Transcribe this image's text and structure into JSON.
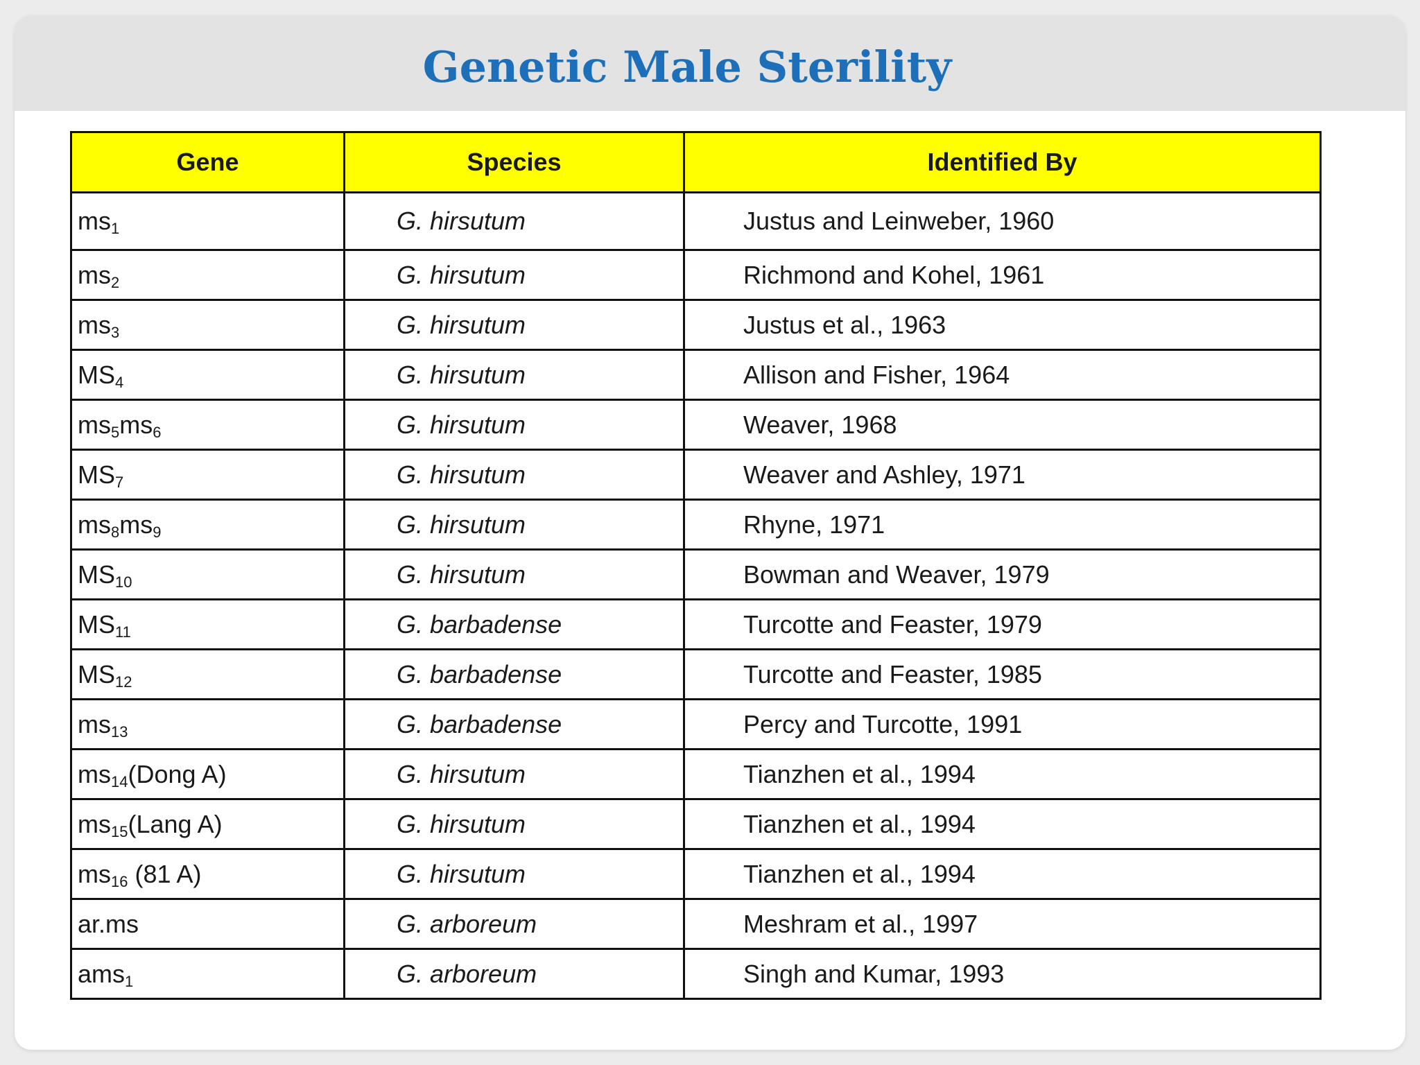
{
  "title": "Genetic Male Sterility",
  "table": {
    "headers": [
      "Gene",
      "Species",
      "Identified By"
    ],
    "rows": [
      {
        "gene": [
          {
            "t": "ms"
          },
          {
            "s": "1"
          }
        ],
        "species": "G. hirsutum",
        "identified_by": "Justus and Leinweber, 1960"
      },
      {
        "gene": [
          {
            "t": "ms"
          },
          {
            "s": "2"
          }
        ],
        "species": "G. hirsutum",
        "identified_by": "Richmond and Kohel, 1961"
      },
      {
        "gene": [
          {
            "t": "ms"
          },
          {
            "s": "3"
          }
        ],
        "species": "G. hirsutum",
        "identified_by": "Justus et al., 1963"
      },
      {
        "gene": [
          {
            "t": "MS"
          },
          {
            "s": "4"
          }
        ],
        "species": "G. hirsutum",
        "identified_by": "Allison and Fisher, 1964"
      },
      {
        "gene": [
          {
            "t": "ms"
          },
          {
            "s": "5"
          },
          {
            "t": "ms"
          },
          {
            "s": "6"
          }
        ],
        "species": "G. hirsutum",
        "identified_by": "Weaver, 1968"
      },
      {
        "gene": [
          {
            "t": "MS"
          },
          {
            "s": "7"
          }
        ],
        "species": "G. hirsutum",
        "identified_by": "Weaver and Ashley, 1971"
      },
      {
        "gene": [
          {
            "t": "ms"
          },
          {
            "s": "8"
          },
          {
            "t": "ms"
          },
          {
            "s": "9"
          }
        ],
        "species": "G. hirsutum",
        "identified_by": "Rhyne, 1971"
      },
      {
        "gene": [
          {
            "t": "MS"
          },
          {
            "s": "10"
          }
        ],
        "species": "G. hirsutum",
        "identified_by": "Bowman and Weaver, 1979"
      },
      {
        "gene": [
          {
            "t": "MS"
          },
          {
            "s": "11"
          }
        ],
        "species": "G. barbadense",
        "identified_by": "Turcotte and Feaster, 1979"
      },
      {
        "gene": [
          {
            "t": "MS"
          },
          {
            "s": "12"
          }
        ],
        "species": "G. barbadense",
        "identified_by": "Turcotte and Feaster, 1985"
      },
      {
        "gene": [
          {
            "t": "ms"
          },
          {
            "s": "13"
          }
        ],
        "species": "G. barbadense",
        "identified_by": "Percy and Turcotte, 1991"
      },
      {
        "gene": [
          {
            "t": "ms"
          },
          {
            "s": "14"
          },
          {
            "t": "(Dong A)"
          }
        ],
        "species": "G. hirsutum",
        "identified_by": "Tianzhen et al., 1994"
      },
      {
        "gene": [
          {
            "t": "ms"
          },
          {
            "s": "15"
          },
          {
            "t": "(Lang A)"
          }
        ],
        "species": "G. hirsutum",
        "identified_by": "Tianzhen et al., 1994"
      },
      {
        "gene": [
          {
            "t": "ms"
          },
          {
            "s": "16"
          },
          {
            "t": " (81 A)"
          }
        ],
        "species": "G. hirsutum",
        "identified_by": "Tianzhen et al., 1994"
      },
      {
        "gene": [
          {
            "t": "ar.ms"
          }
        ],
        "species": "G. arboreum",
        "identified_by": "Meshram et al., 1997"
      },
      {
        "gene": [
          {
            "t": "ams"
          },
          {
            "s": "1"
          }
        ],
        "species": "G. arboreum",
        "identified_by": "Singh and Kumar, 1993"
      }
    ]
  }
}
